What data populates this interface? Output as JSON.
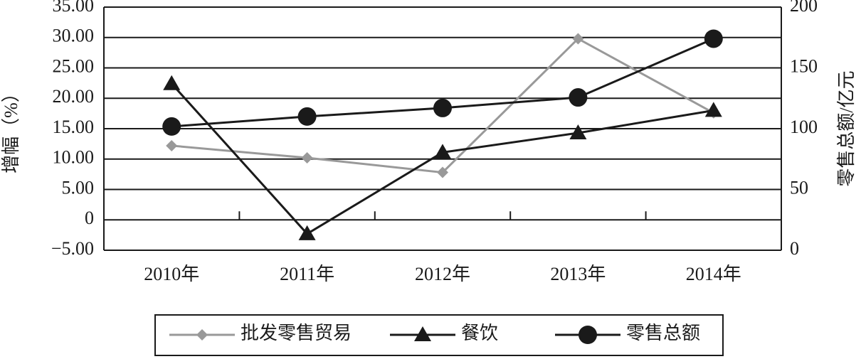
{
  "chart_data": {
    "type": "line",
    "categories": [
      "2010年",
      "2011年",
      "2012年",
      "2013年",
      "2014年"
    ],
    "ylabel": "增幅（%）",
    "y2label": "零售总额/亿元",
    "ylim": [
      -5,
      35
    ],
    "yticks": [
      {
        "value": -5,
        "label": "−5.00"
      },
      0,
      {
        "value": 5,
        "label": "5.00"
      },
      {
        "value": 10,
        "label": "10.00"
      },
      {
        "value": 15,
        "label": "15.00"
      },
      {
        "value": 20,
        "label": "20.00"
      },
      {
        "value": 25,
        "label": "25.00"
      },
      {
        "value": 30,
        "label": "30.00"
      },
      {
        "value": 35,
        "label": "35.00"
      }
    ],
    "y2lim": [
      0,
      200
    ],
    "y2ticks": [
      0,
      50,
      100,
      150,
      200
    ],
    "grid": true,
    "series": [
      {
        "name": "批发零售贸易",
        "color": "#999999",
        "marker": "diamond",
        "values": [
          12.2,
          10.2,
          7.8,
          29.8,
          17.6
        ]
      },
      {
        "name": "餐饮",
        "color": "#1a1a1a",
        "marker": "triangle",
        "values": [
          22.4,
          -2.3,
          11.1,
          14.3,
          18.0
        ]
      },
      {
        "name": "零售总额",
        "color": "#1a1a1a",
        "marker": "circle",
        "axis": "y2",
        "values": [
          101.8,
          110,
          117,
          125.7,
          174
        ]
      }
    ]
  }
}
